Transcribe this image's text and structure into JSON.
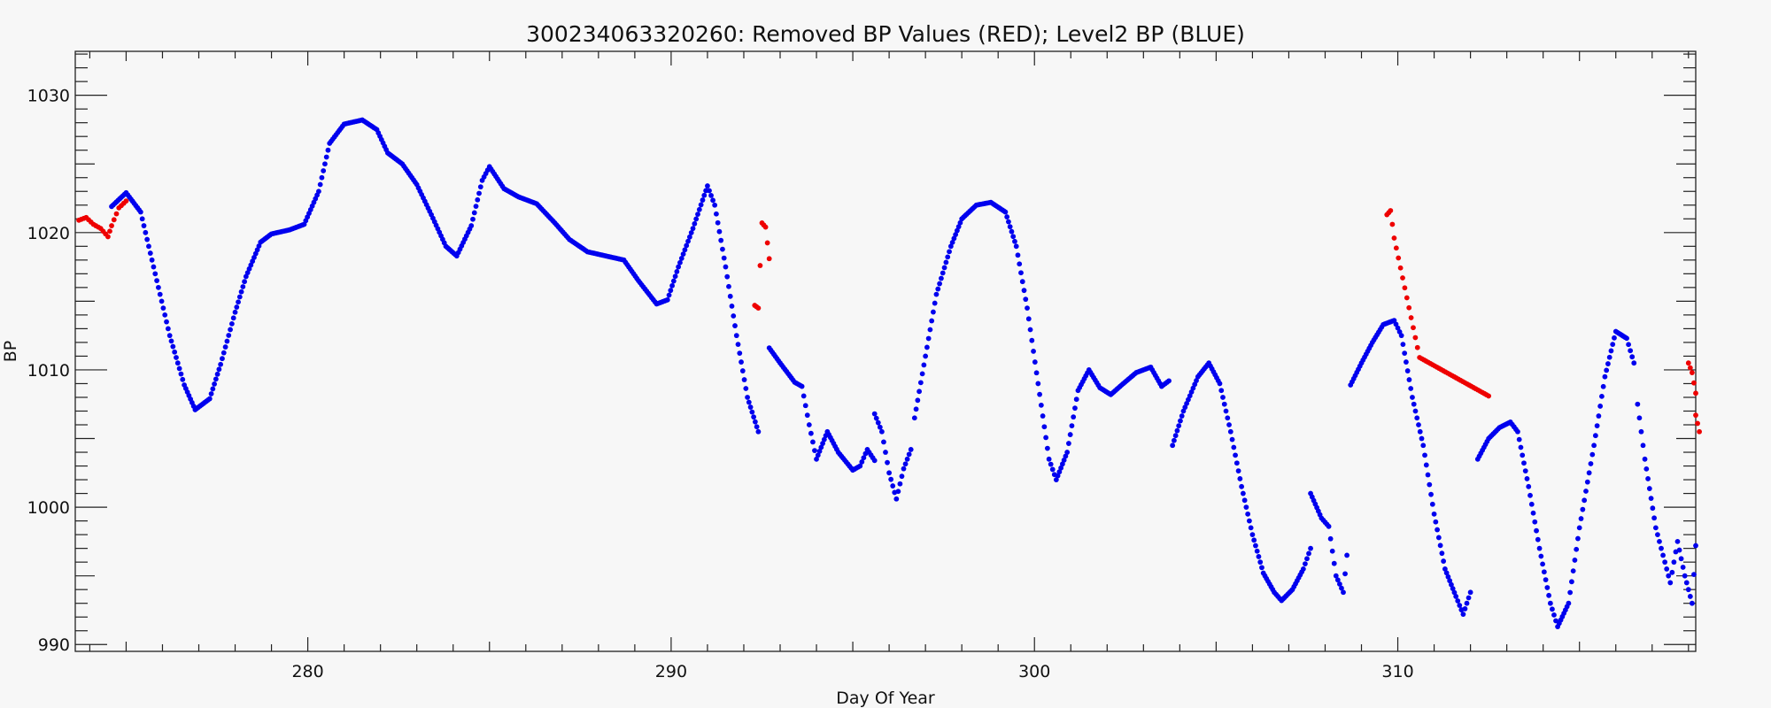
{
  "chart_data": {
    "type": "scatter",
    "title": "300234063320260: Removed BP Values (RED); Level2 BP (BLUE)",
    "xlabel": "Day Of Year",
    "ylabel": "BP",
    "xlim": [
      273.6,
      318.2
    ],
    "ylim": [
      989.5,
      1033.2
    ],
    "x_ticks": [
      280,
      290,
      300,
      310
    ],
    "x_tick_labels": [
      "280",
      "290",
      "300",
      "310"
    ],
    "y_ticks": [
      990,
      1000,
      1010,
      1020,
      1030
    ],
    "y_tick_labels": [
      "990",
      "1000",
      "1010",
      "1020",
      "1030"
    ],
    "grid": false,
    "legend": "none",
    "series": [
      {
        "color": "#0000ee",
        "marker": "dot",
        "segments": [
          [
            [
              274.6,
              1021.9
            ],
            [
              275.0,
              1022.9
            ],
            [
              275.4,
              1021.5
            ],
            [
              275.8,
              1017.0
            ],
            [
              276.2,
              1012.5
            ],
            [
              276.6,
              1008.9
            ],
            [
              276.9,
              1007.1
            ],
            [
              277.3,
              1007.9
            ],
            [
              277.6,
              1010.4
            ],
            [
              278.0,
              1014.2
            ],
            [
              278.3,
              1016.8
            ],
            [
              278.7,
              1019.3
            ],
            [
              279.0,
              1019.9
            ],
            [
              279.5,
              1020.2
            ],
            [
              279.9,
              1020.6
            ],
            [
              280.3,
              1023.0
            ],
            [
              280.6,
              1026.5
            ],
            [
              281.0,
              1027.9
            ],
            [
              281.5,
              1028.2
            ],
            [
              281.9,
              1027.5
            ],
            [
              282.2,
              1025.8
            ],
            [
              282.6,
              1025.0
            ],
            [
              283.0,
              1023.5
            ],
            [
              283.4,
              1021.3
            ],
            [
              283.8,
              1019.0
            ],
            [
              284.1,
              1018.3
            ],
            [
              284.5,
              1020.5
            ],
            [
              284.8,
              1023.8
            ],
            [
              285.0,
              1024.8
            ],
            [
              285.4,
              1023.2
            ],
            [
              285.8,
              1022.6
            ],
            [
              286.3,
              1022.1
            ],
            [
              286.8,
              1020.7
            ],
            [
              287.2,
              1019.5
            ],
            [
              287.7,
              1018.6
            ],
            [
              288.2,
              1018.3
            ],
            [
              288.7,
              1018.0
            ],
            [
              289.1,
              1016.5
            ],
            [
              289.6,
              1014.8
            ],
            [
              289.9,
              1015.1
            ],
            [
              290.2,
              1017.5
            ],
            [
              290.6,
              1020.3
            ],
            [
              291.0,
              1023.4
            ],
            [
              291.2,
              1022.0
            ],
            [
              291.5,
              1017.5
            ],
            [
              291.8,
              1012.5
            ],
            [
              292.1,
              1008.0
            ],
            [
              292.4,
              1005.5
            ]
          ],
          [
            [
              292.7,
              1011.6
            ],
            [
              293.0,
              1010.5
            ],
            [
              293.4,
              1009.1
            ],
            [
              293.6,
              1008.8
            ],
            [
              293.8,
              1006.0
            ],
            [
              294.0,
              1003.5
            ],
            [
              294.3,
              1005.5
            ],
            [
              294.6,
              1004.0
            ],
            [
              295.0,
              1002.7
            ],
            [
              295.2,
              1003.0
            ],
            [
              295.4,
              1004.2
            ],
            [
              295.6,
              1003.4
            ]
          ],
          [
            [
              295.6,
              1006.8
            ],
            [
              295.8,
              1005.5
            ],
            [
              296.0,
              1002.5
            ],
            [
              296.2,
              1000.6
            ],
            [
              296.4,
              1002.8
            ],
            [
              296.6,
              1004.2
            ]
          ],
          [
            [
              296.7,
              1006.5
            ],
            [
              297.0,
              1011.0
            ],
            [
              297.3,
              1015.5
            ],
            [
              297.7,
              1019.0
            ],
            [
              298.0,
              1021.0
            ],
            [
              298.4,
              1022.0
            ],
            [
              298.8,
              1022.2
            ],
            [
              299.2,
              1021.5
            ],
            [
              299.5,
              1019.0
            ],
            [
              299.8,
              1014.5
            ],
            [
              300.1,
              1009.0
            ],
            [
              300.4,
              1003.5
            ],
            [
              300.6,
              1002.0
            ],
            [
              300.9,
              1004.0
            ],
            [
              301.2,
              1008.5
            ],
            [
              301.5,
              1010.0
            ],
            [
              301.8,
              1008.7
            ],
            [
              302.1,
              1008.2
            ],
            [
              302.4,
              1008.9
            ],
            [
              302.8,
              1009.8
            ],
            [
              303.2,
              1010.2
            ],
            [
              303.5,
              1008.8
            ],
            [
              303.7,
              1009.2
            ]
          ],
          [
            [
              303.8,
              1004.5
            ],
            [
              304.1,
              1007.0
            ],
            [
              304.5,
              1009.5
            ],
            [
              304.8,
              1010.5
            ],
            [
              305.1,
              1009.0
            ],
            [
              305.4,
              1005.5
            ],
            [
              305.7,
              1001.5
            ],
            [
              306.0,
              998.0
            ],
            [
              306.3,
              995.2
            ],
            [
              306.6,
              993.8
            ],
            [
              306.8,
              993.2
            ],
            [
              307.1,
              994.0
            ],
            [
              307.4,
              995.5
            ],
            [
              307.6,
              997.0
            ]
          ],
          [
            [
              307.6,
              1001.0
            ],
            [
              307.9,
              999.2
            ],
            [
              308.1,
              998.6
            ],
            [
              308.3,
              995.0
            ],
            [
              308.5,
              993.8
            ],
            [
              308.6,
              996.5
            ]
          ],
          [
            [
              308.7,
              1008.9
            ],
            [
              309.0,
              1010.5
            ],
            [
              309.3,
              1012.0
            ],
            [
              309.6,
              1013.3
            ],
            [
              309.9,
              1013.6
            ],
            [
              310.1,
              1012.5
            ],
            [
              310.4,
              1008.0
            ],
            [
              310.7,
              1004.5
            ],
            [
              311.0,
              999.5
            ],
            [
              311.3,
              995.5
            ],
            [
              311.6,
              993.5
            ],
            [
              311.8,
              992.2
            ],
            [
              312.0,
              993.8
            ]
          ],
          [
            [
              312.2,
              1003.5
            ],
            [
              312.5,
              1005.0
            ],
            [
              312.8,
              1005.8
            ],
            [
              313.1,
              1006.2
            ],
            [
              313.3,
              1005.5
            ],
            [
              313.6,
              1001.5
            ],
            [
              313.9,
              997.0
            ],
            [
              314.2,
              993.0
            ],
            [
              314.4,
              991.3
            ],
            [
              314.7,
              993.0
            ],
            [
              315.0,
              998.5
            ],
            [
              315.4,
              1004.5
            ],
            [
              315.7,
              1009.5
            ],
            [
              316.0,
              1012.8
            ],
            [
              316.3,
              1012.3
            ],
            [
              316.5,
              1010.5
            ]
          ],
          [
            [
              316.6,
              1007.5
            ],
            [
              316.8,
              1003.5
            ],
            [
              317.1,
              998.5
            ],
            [
              317.3,
              996.5
            ],
            [
              317.5,
              994.5
            ],
            [
              317.7,
              997.5
            ],
            [
              317.9,
              995.0
            ],
            [
              318.1,
              993.0
            ],
            [
              318.2,
              997.2
            ]
          ]
        ]
      },
      {
        "color": "#ee0000",
        "marker": "dot",
        "segments": [
          [
            [
              273.7,
              1020.9
            ],
            [
              273.9,
              1021.1
            ],
            [
              274.1,
              1020.6
            ],
            [
              274.3,
              1020.3
            ],
            [
              274.5,
              1019.7
            ],
            [
              274.6,
              1020.5
            ],
            [
              274.8,
              1021.8
            ],
            [
              275.0,
              1022.3
            ]
          ],
          [
            [
              292.3,
              1014.7
            ],
            [
              292.4,
              1014.5
            ],
            [
              292.5,
              1020.7
            ],
            [
              292.6,
              1020.4
            ],
            [
              292.7,
              1018.1
            ]
          ],
          [
            [
              309.7,
              1021.3
            ],
            [
              309.8,
              1021.6
            ],
            [
              309.9,
              1019.6
            ],
            [
              310.6,
              1010.9
            ],
            [
              312.5,
              1008.1
            ]
          ],
          [
            [
              318.0,
              1010.5
            ],
            [
              318.1,
              1009.8
            ],
            [
              318.2,
              1008.3
            ],
            [
              318.2,
              1006.7
            ],
            [
              318.3,
              1005.5
            ]
          ]
        ]
      }
    ]
  }
}
